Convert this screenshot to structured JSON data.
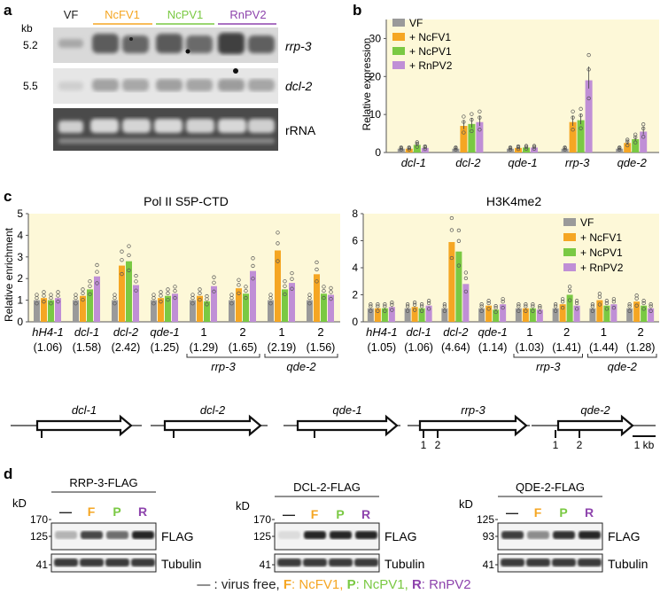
{
  "panel_labels": {
    "a": "a",
    "b": "b",
    "c": "c",
    "d": "d"
  },
  "panel_a": {
    "kb_label": "kb",
    "lanes": [
      "VF",
      "NcFV1",
      "NcPV1",
      "RnPV2"
    ],
    "rows": [
      {
        "size": "5.2",
        "gene": "rrp-3"
      },
      {
        "size": "5.5",
        "gene": "dcl-2"
      },
      {
        "size": "",
        "gene": "rRNA"
      }
    ]
  },
  "colors": {
    "VF": "#9a9a9a",
    "NcFV1": "#f5a623",
    "NcPV1": "#7ac943",
    "RnPV2": "#c08fd6",
    "bg": "#fdf8d8"
  },
  "legend": [
    "VF",
    "+ NcFV1",
    "+ NcPV1",
    "+ RnPV2"
  ],
  "chart_data": [
    {
      "type": "bar",
      "panel": "b",
      "ylabel": "Relative expression",
      "ylim": [
        0,
        35
      ],
      "yticks": [
        0,
        10,
        20,
        30
      ],
      "categories": [
        "dcl-1",
        "dcl-2",
        "qde-1",
        "rrp-3",
        "qde-2"
      ],
      "series": [
        {
          "name": "VF",
          "values": [
            1.0,
            1.0,
            1.0,
            1.0,
            1.0
          ]
        },
        {
          "name": "+ NcFV1",
          "values": [
            1.0,
            7.0,
            1.2,
            8.0,
            2.5
          ]
        },
        {
          "name": "+ NcPV1",
          "values": [
            2.0,
            7.5,
            1.3,
            8.5,
            3.5
          ]
        },
        {
          "name": "+ RnPV2",
          "values": [
            1.2,
            8.0,
            1.3,
            19.0,
            5.5
          ]
        }
      ]
    },
    {
      "type": "bar",
      "panel": "c-left",
      "title": "Pol II S5P-CTD",
      "ylabel": "Relative enrichment",
      "ylim": [
        0,
        5
      ],
      "yticks": [
        0,
        1,
        2,
        3,
        4,
        5
      ],
      "categories": [
        "hH4-1",
        "dcl-1",
        "dcl-2",
        "qde-1",
        "1",
        "2",
        "1",
        "2"
      ],
      "ratios": [
        "(1.06)",
        "(1.58)",
        "(2.42)",
        "(1.25)",
        "(1.29)",
        "(1.65)",
        "(2.19)",
        "(1.56)"
      ],
      "groups": [
        {
          "label": "rrp-3",
          "from": 4,
          "to": 5
        },
        {
          "label": "qde-2",
          "from": 6,
          "to": 7
        }
      ],
      "series": [
        {
          "name": "VF",
          "values": [
            1.0,
            1.0,
            1.0,
            1.0,
            1.0,
            1.0,
            1.0,
            1.0
          ]
        },
        {
          "name": "+ NcFV1",
          "values": [
            1.1,
            1.2,
            2.6,
            1.1,
            1.2,
            1.55,
            3.3,
            2.2
          ]
        },
        {
          "name": "+ NcPV1",
          "values": [
            1.0,
            1.5,
            2.8,
            1.2,
            0.95,
            1.3,
            1.5,
            1.3
          ]
        },
        {
          "name": "+ RnPV2",
          "values": [
            1.1,
            2.1,
            1.7,
            1.3,
            1.65,
            2.35,
            1.8,
            1.25
          ]
        }
      ]
    },
    {
      "type": "bar",
      "panel": "c-right",
      "title": "H3K4me2",
      "ylim": [
        0,
        8
      ],
      "yticks": [
        0,
        2,
        4,
        6,
        8
      ],
      "categories": [
        "hH4-1",
        "dcl-1",
        "dcl-2",
        "qde-1",
        "1",
        "2",
        "1",
        "2"
      ],
      "ratios": [
        "(1.05)",
        "(1.06)",
        "(4.64)",
        "(1.14)",
        "(1.03)",
        "(1.41)",
        "(1.44)",
        "(1.28)"
      ],
      "groups": [
        {
          "label": "rrp-3",
          "from": 4,
          "to": 5
        },
        {
          "label": "qde-2",
          "from": 6,
          "to": 7
        }
      ],
      "series": [
        {
          "name": "VF",
          "values": [
            1.0,
            1.0,
            1.0,
            1.0,
            1.0,
            1.0,
            1.0,
            1.0
          ]
        },
        {
          "name": "+ NcFV1",
          "values": [
            1.0,
            1.1,
            5.9,
            1.2,
            1.0,
            1.3,
            1.6,
            1.5
          ]
        },
        {
          "name": "+ NcPV1",
          "values": [
            1.0,
            1.0,
            5.2,
            0.9,
            1.0,
            2.0,
            1.2,
            1.2
          ]
        },
        {
          "name": "+ RnPV2",
          "values": [
            1.1,
            1.2,
            2.8,
            1.3,
            0.9,
            1.2,
            1.3,
            1.0
          ]
        }
      ]
    }
  ],
  "gene_map": {
    "genes": [
      "dcl-1",
      "dcl-2",
      "qde-1",
      "rrp-3",
      "qde-2"
    ],
    "primers": [
      "1",
      "2",
      "1",
      "2"
    ],
    "scale": "1 kb"
  },
  "panel_d": {
    "kd_label": "kD",
    "lanes": [
      "—",
      "F",
      "P",
      "R"
    ],
    "blots": [
      {
        "title": "RRP-3-FLAG",
        "markers": [
          "170",
          "125",
          "41"
        ],
        "band1": "FLAG",
        "band2": "Tubulin"
      },
      {
        "title": "DCL-2-FLAG",
        "markers": [
          "170",
          "125",
          "41"
        ],
        "band1": "FLAG",
        "band2": "Tubulin"
      },
      {
        "title": "QDE-2-FLAG",
        "markers": [
          "125",
          "93",
          "41"
        ],
        "band1": "FLAG",
        "band2": "Tubulin"
      }
    ],
    "footer": {
      "vf": "— : virus free, ",
      "f_key": "F",
      "f_val": ": NcFV1, ",
      "p_key": "P",
      "p_val": ": NcPV1, ",
      "r_key": "R",
      "r_val": ": RnPV2"
    }
  }
}
